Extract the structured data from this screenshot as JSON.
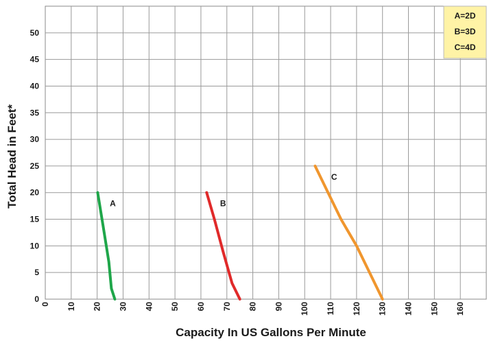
{
  "chart_data": {
    "type": "line",
    "xlabel": "Capacity In US Gallons Per Minute",
    "ylabel": "Total Head in Feet*",
    "xlim": [
      0,
      170
    ],
    "ylim": [
      0,
      55
    ],
    "x_ticks": [
      "0",
      "10",
      "20",
      "30",
      "40",
      "50",
      "60",
      "70",
      "80",
      "90",
      "100",
      "110",
      "120",
      "130",
      "140",
      "150",
      "160"
    ],
    "y_ticks": [
      "0",
      "5",
      "10",
      "15",
      "20",
      "25",
      "30",
      "35",
      "40",
      "45",
      "50"
    ],
    "grid": true,
    "legend_position": "top-right",
    "legend": [
      "A=2D",
      "B=3D",
      "C=4D"
    ],
    "legend_bg": "#fff3a6",
    "series": [
      {
        "name": "A",
        "color": "#1fa64a",
        "points": [
          [
            20.2,
            20
          ],
          [
            22.2,
            14
          ],
          [
            24.5,
            7
          ],
          [
            25.5,
            2
          ],
          [
            26.8,
            0
          ]
        ]
      },
      {
        "name": "B",
        "color": "#e02a2a",
        "points": [
          [
            62.2,
            20
          ],
          [
            65.2,
            15
          ],
          [
            68.5,
            9
          ],
          [
            72,
            3
          ],
          [
            75,
            0
          ]
        ]
      },
      {
        "name": "C",
        "color": "#f0962e",
        "points": [
          [
            104,
            25
          ],
          [
            109,
            20
          ],
          [
            114,
            15
          ],
          [
            120,
            10
          ],
          [
            130,
            0
          ]
        ]
      }
    ]
  }
}
